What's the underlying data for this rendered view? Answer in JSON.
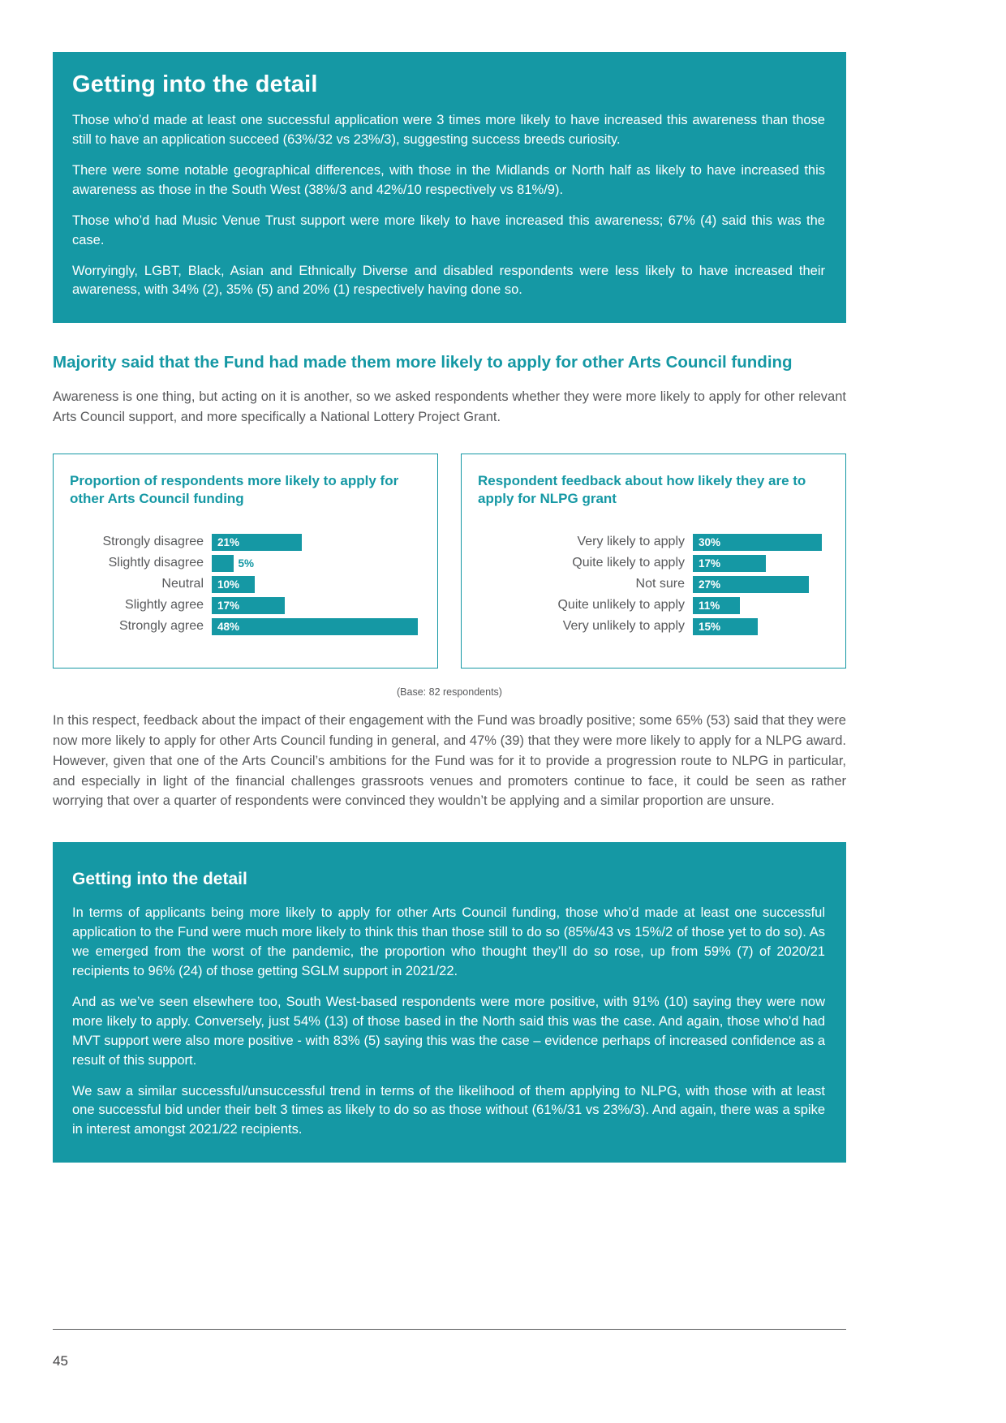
{
  "colors": {
    "teal": "#1598a4",
    "body_text": "#58595b",
    "white": "#ffffff"
  },
  "detail_box_top": {
    "title": "Getting into the detail",
    "paragraphs": [
      "Those who’d made at least one successful application were 3 times more likely to have increased this awareness than those still to have an application succeed (63%/32 vs 23%/3), suggesting success breeds curiosity.",
      "There were some notable geographical differences, with those in the Midlands or North half as likely to have increased this awareness as those in the South West (38%/3 and 42%/10 respectively vs 81%/9).",
      "Those who’d had Music Venue Trust support were more likely to have increased this awareness; 67% (4) said this was the case.",
      "Worryingly, LGBT, Black, Asian and Ethnically Diverse and disabled respondents were less likely to have increased their awareness, with 34% (2), 35% (5) and 20% (1) respectively having done so."
    ]
  },
  "section": {
    "heading": "Majority said that the Fund had made them more likely to apply for other Arts Council funding",
    "intro": "Awareness is one thing, but acting on it is another, so we asked respondents whether they were more likely to apply for other relevant Arts Council support, and more specifically a National Lottery Project Grant.",
    "base_note": "(Base: 82 respondents)",
    "analysis": "In this respect, feedback about the impact of their engagement with the Fund was broadly positive; some 65% (53) said that they were now more likely to apply for other Arts Council funding in general, and 47% (39) that they were more likely to apply for a NLPG award. However, given that one of the Arts Council’s ambitions for the Fund was for it to provide a progression route to NLPG in particular, and especially in light of the financial challenges grassroots venues and promoters continue to face, it could be seen as rather worrying that over a quarter of respondents were convinced they wouldn’t be applying and a similar proportion are unsure."
  },
  "chart_data": [
    {
      "type": "bar",
      "orientation": "horizontal",
      "title": "Proportion of respondents more likely to apply for other Arts Council funding",
      "categories": [
        "Strongly disagree",
        "Slightly disagree",
        "Neutral",
        "Slightly agree",
        "Strongly agree"
      ],
      "values": [
        21,
        5,
        10,
        17,
        48
      ],
      "value_labels": [
        "21%",
        "5%",
        "10%",
        "17%",
        "48%"
      ],
      "xlim": [
        0,
        50
      ],
      "bar_color": "#1598a4",
      "grid": false,
      "legend": false
    },
    {
      "type": "bar",
      "orientation": "horizontal",
      "title": "Respondent feedback about how likely they are to apply for NLPG grant",
      "categories": [
        "Very likely to apply",
        "Quite likely to apply",
        "Not sure",
        "Quite unlikely to apply",
        "Very unlikely to apply"
      ],
      "values": [
        30,
        17,
        27,
        11,
        15
      ],
      "value_labels": [
        "30%",
        "17%",
        "27%",
        "11%",
        "15%"
      ],
      "xlim": [
        0,
        50
      ],
      "bar_color": "#1598a4",
      "grid": false,
      "legend": false
    }
  ],
  "detail_box_bottom": {
    "title": "Getting into the detail",
    "paragraphs": [
      "In terms of applicants being more likely to apply for other Arts Council funding, those who’d made at least one successful application to the Fund were much more likely to think this than those still to do so (85%/43 vs 15%/2 of those yet to do so). As we emerged from the worst of the pandemic, the proportion who thought they’ll do so rose, up from 59% (7) of 2020/21 recipients to 96% (24) of those getting SGLM support in 2021/22.",
      "And as we’ve seen elsewhere too, South West-based respondents were more positive, with 91% (10) saying they were now more likely to apply. Conversely, just 54% (13) of those based in the North said this was the case. And again, those who'd had MVT support were also more positive - with 83% (5) saying this was the case – evidence perhaps of increased confidence as a result of this support.",
      "We saw a similar successful/unsuccessful trend in terms of the likelihood of them applying to NLPG, with those with at least one successful bid under their belt 3 times as likely to do so as those without (61%/31 vs 23%/3). And again, there was a spike in interest amongst 2021/22 recipients."
    ]
  },
  "footer": {
    "page_number": "45"
  }
}
